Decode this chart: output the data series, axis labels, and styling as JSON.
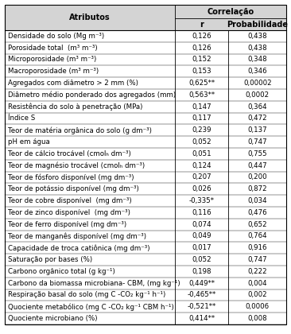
{
  "header_col": "Atributos",
  "header_corr": "Correlação",
  "header_r": "r",
  "header_prob": "Probabilidade",
  "rows": [
    [
      "Densidade do solo (Mg m⁻³)",
      "0,126",
      "0,438"
    ],
    [
      "Porosidade total  (m³ m⁻³)",
      "0,126",
      "0,438"
    ],
    [
      "Microporosidade (m³ m⁻³)",
      "0,152",
      "0,348"
    ],
    [
      "Macroporosidade (m³ m⁻³)",
      "0,153",
      "0,346"
    ],
    [
      "Agregados com diâmetro > 2 mm (%)",
      "0,625**",
      "0,00002"
    ],
    [
      "Diâmetro médio ponderado dos agregados (mm)",
      "0,563**",
      "0,0002"
    ],
    [
      "Resistência do solo à penetração (MPa)",
      "0,147",
      "0,364"
    ],
    [
      "Índice S",
      "0,117",
      "0,472"
    ],
    [
      "Teor de matéria orgânica do solo (g dm⁻³)",
      "0,239",
      "0,137"
    ],
    [
      "pH em água",
      "0,052",
      "0,747"
    ],
    [
      "Teor de cálcio trocável (cmolₕ dm⁻³)",
      "0,051",
      "0,755"
    ],
    [
      "Teor de magnésio trocável (cmolₕ dm⁻³)",
      "0,124",
      "0,447"
    ],
    [
      "Teor de fósforo disponível (mg dm⁻³)",
      "0,207",
      "0,200"
    ],
    [
      "Teor de potássio disponível (mg dm⁻³)",
      "0,026",
      "0,872"
    ],
    [
      "Teor de cobre disponível  (mg dm⁻³)",
      "-0,335*",
      "0,034"
    ],
    [
      "Teor de zinco disponível  (mg dm⁻³)",
      "0,116",
      "0,476"
    ],
    [
      "Teor de ferro disponível (mg dm⁻³)",
      "0,074",
      "0,652"
    ],
    [
      "Teor de manganês disponível (mg dm⁻³)",
      "0,049",
      "0,764"
    ],
    [
      "Capacidade de troca catiônica (mg dm⁻³)",
      "0,017",
      "0,916"
    ],
    [
      "Saturação por bases (%)",
      "0,052",
      "0,747"
    ],
    [
      "Carbono orgânico total (g kg⁻¹)",
      "0,198",
      "0,222"
    ],
    [
      "Carbono da biomassa microbiana- CBM, (mg kg⁻¹)",
      "0,449**",
      "0,004"
    ],
    [
      "Respiração basal do solo (mg C -CO₂ kg⁻¹ h⁻¹)",
      "-0,465**",
      "0,002"
    ],
    [
      "Quociente metabólico (mg C -CO₂ kg⁻¹ CBM h⁻¹)",
      "-0,521**",
      "0,0006"
    ],
    [
      "Quociente microbiano (%)",
      "0,414**",
      "0,008"
    ]
  ],
  "bg_header": "#d4d4d4",
  "bg_white": "#ffffff",
  "border_color": "#000000",
  "font_size": 6.2,
  "header_font_size": 7.0,
  "fig_width": 3.66,
  "fig_height": 4.2,
  "dpi": 100
}
